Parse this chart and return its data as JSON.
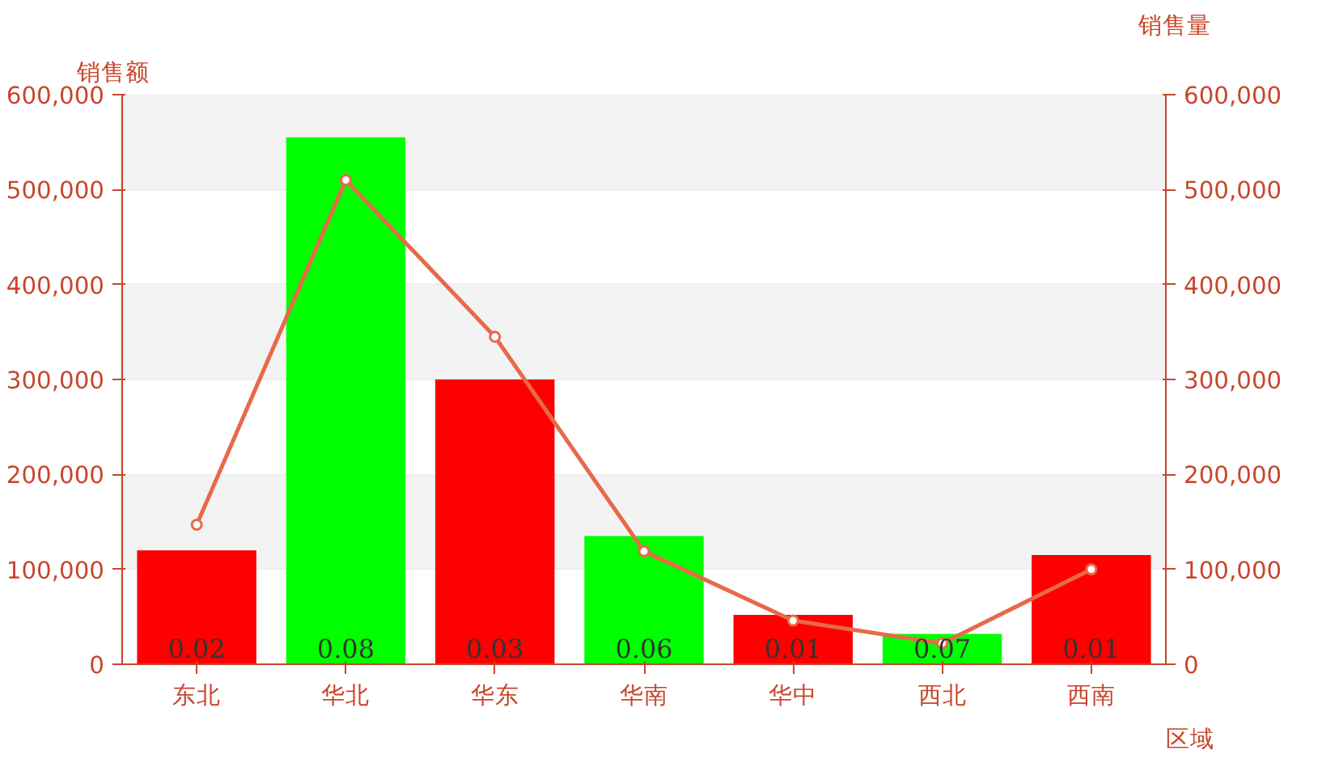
{
  "chart_data": {
    "type": "bar",
    "xlabel": "区域",
    "ylabel": "销售额",
    "y2label": "销售量",
    "categories": [
      "东北",
      "华北",
      "华东",
      "华南",
      "华中",
      "西北",
      "西南"
    ],
    "series": [
      {
        "colors": [
          "#ff0000",
          "#00ff00",
          "#ff0000",
          "#00ff00",
          "#ff0000",
          "#00ff00",
          "#ff0000"
        ],
        "values": [
          120000,
          555000,
          300000,
          135000,
          52000,
          32000,
          115000
        ]
      },
      {
        "type": "line",
        "axis": "y2",
        "color": "#e8694a",
        "values": [
          147000,
          510000,
          345000,
          119000,
          46000,
          22000,
          100000
        ],
        "marker": "circle"
      }
    ],
    "ylim": [
      0,
      600000
    ],
    "yticks": [
      {
        "value": 0,
        "label": "0"
      },
      {
        "value": 100000,
        "label": "100,000"
      },
      {
        "value": 200000,
        "label": "200,000"
      },
      {
        "value": 300000,
        "label": "300,000"
      },
      {
        "value": 400000,
        "label": "400,000"
      },
      {
        "value": 500000,
        "label": "500,000"
      },
      {
        "value": 600000,
        "label": "600,000"
      }
    ],
    "y2lim": [
      0,
      600000
    ],
    "y2ticks": [
      {
        "value": 0,
        "label": "0"
      },
      {
        "value": 100000,
        "label": "100,000"
      },
      {
        "value": 200000,
        "label": "200,000"
      },
      {
        "value": 300000,
        "label": "300,000"
      },
      {
        "value": 400000,
        "label": "400,000"
      },
      {
        "value": 500000,
        "label": "500,000"
      },
      {
        "value": 600000,
        "label": "600,000"
      }
    ],
    "annotations": [
      {
        "text": "0.02",
        "x": "东北",
        "y": 0
      },
      {
        "text": "0.08",
        "x": "华北",
        "y": 0
      },
      {
        "text": "0.03",
        "x": "华东",
        "y": 0
      },
      {
        "text": "0.06",
        "x": "华南",
        "y": 0
      },
      {
        "text": "0.01",
        "x": "华中",
        "y": 0
      },
      {
        "text": "0.07",
        "x": "西北",
        "y": 0
      },
      {
        "text": "0.01",
        "x": "西南",
        "y": 0
      }
    ],
    "grid": "y"
  }
}
